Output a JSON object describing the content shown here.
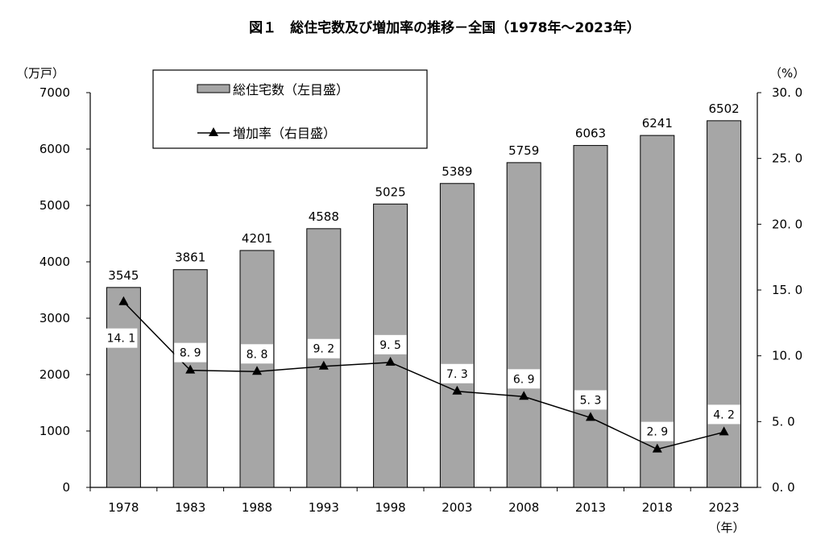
{
  "chart_data": {
    "type": "bar+line",
    "title": "図１　総住宅数及び増加率の推移－全国（1978年～2023年）",
    "categories": [
      "1978",
      "1983",
      "1988",
      "1993",
      "1998",
      "2003",
      "2008",
      "2013",
      "2018",
      "2023"
    ],
    "series": [
      {
        "name": "総住宅数（左目盛）",
        "type": "bar",
        "axis": "left",
        "color": "#a6a6a6",
        "values": [
          3545,
          3861,
          4201,
          4588,
          5025,
          5389,
          5759,
          6063,
          6241,
          6502
        ]
      },
      {
        "name": "増加率（右目盛）",
        "type": "line",
        "axis": "right",
        "marker": "triangle",
        "color": "#000000",
        "values": [
          14.1,
          8.9,
          8.8,
          9.2,
          9.5,
          7.3,
          6.9,
          5.3,
          2.9,
          4.2
        ]
      }
    ],
    "y_left": {
      "unit_label": "（万戸）",
      "range": [
        0,
        7000
      ],
      "ticks": [
        "0",
        "1000",
        "2000",
        "3000",
        "4000",
        "5000",
        "6000",
        "7000"
      ]
    },
    "y_right": {
      "unit_label": "（%）",
      "range": [
        0,
        30
      ],
      "ticks": [
        "0.0",
        "5.0",
        "10.0",
        "15.0",
        "20.0",
        "25.0",
        "30.0"
      ]
    },
    "x_unit_label": "（年）",
    "grid": false,
    "legend_placement": "top-left"
  }
}
